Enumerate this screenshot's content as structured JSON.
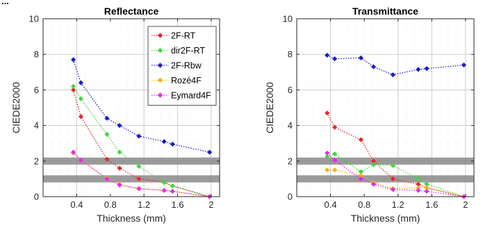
{
  "header_cut_text": "...",
  "chart_data": [
    {
      "type": "line",
      "title": "Reflectance",
      "xlabel": "Thickness (mm)",
      "ylabel": "CIEDE2000",
      "xlim": [
        0,
        2.1
      ],
      "ylim": [
        0,
        10
      ],
      "xticks": [
        "0.4",
        "0.8",
        "1.2",
        "1.6",
        "2"
      ],
      "yticks": [
        "0",
        "2",
        "4",
        "6",
        "8",
        "10"
      ],
      "grid": true,
      "legend_placement": "top-right",
      "threshold_bands": [
        [
          0.8,
          1.2
        ],
        [
          1.8,
          2.2
        ]
      ],
      "series": [
        {
          "name": "2F-RT",
          "color": "#e8262a",
          "x": [
            0.36,
            0.45,
            0.76,
            0.91,
            1.14,
            1.44,
            1.54,
            1.98
          ],
          "y": [
            6.0,
            4.5,
            2.1,
            1.6,
            1.0,
            0.8,
            0.6,
            0.0
          ]
        },
        {
          "name": "dir2F-RT",
          "color": "#3fd83f",
          "x": [
            0.36,
            0.45,
            0.76,
            0.91,
            1.14,
            1.44,
            1.54,
            1.98
          ],
          "y": [
            6.2,
            5.5,
            3.5,
            2.5,
            1.7,
            0.8,
            0.6,
            0.0
          ]
        },
        {
          "name": "2F-Rbw",
          "color": "#1a1ac8",
          "x": [
            0.36,
            0.45,
            0.76,
            0.91,
            1.14,
            1.44,
            1.54,
            1.98
          ],
          "y": [
            7.7,
            6.4,
            4.4,
            4.0,
            3.4,
            3.1,
            2.95,
            2.5
          ]
        },
        {
          "name": "Rozé4F",
          "color": "#f2b21b",
          "x": [
            0.36,
            0.45,
            0.76,
            0.91,
            1.14,
            1.44,
            1.54,
            1.98
          ],
          "y": [
            2.45,
            2.05,
            1.05,
            0.7,
            0.45,
            0.35,
            0.3,
            0.0
          ]
        },
        {
          "name": "Eymard4F",
          "color": "#e629e6",
          "x": [
            0.36,
            0.45,
            0.76,
            0.91,
            1.14,
            1.44,
            1.54,
            1.98
          ],
          "y": [
            2.5,
            2.05,
            1.0,
            0.65,
            0.45,
            0.35,
            0.3,
            0.0
          ]
        }
      ]
    },
    {
      "type": "line",
      "title": "Transmittance",
      "xlabel": "Thickness (mm)",
      "ylabel": "CIEDE2000",
      "xlim": [
        0,
        2.1
      ],
      "ylim": [
        0,
        10
      ],
      "xticks": [
        "0.4",
        "0.8",
        "1.2",
        "1.6",
        "2"
      ],
      "yticks": [
        "0",
        "2",
        "4",
        "6",
        "8",
        "10"
      ],
      "grid": true,
      "threshold_bands": [
        [
          0.8,
          1.2
        ],
        [
          1.8,
          2.2
        ]
      ],
      "series": [
        {
          "name": "2F-RT",
          "color": "#e8262a",
          "x": [
            0.36,
            0.45,
            0.76,
            0.91,
            1.14,
            1.44,
            1.54,
            1.98
          ],
          "y": [
            4.7,
            3.9,
            3.2,
            2.0,
            1.0,
            0.7,
            0.5,
            0.0
          ]
        },
        {
          "name": "dir2F-RT",
          "color": "#3fd83f",
          "x": [
            0.36,
            0.45,
            0.76,
            0.91,
            1.14,
            1.44,
            1.54,
            1.98
          ],
          "y": [
            2.25,
            2.4,
            1.4,
            1.8,
            1.75,
            1.0,
            0.7,
            0.0
          ]
        },
        {
          "name": "2F-Rbw",
          "color": "#1a1ac8",
          "x": [
            0.36,
            0.45,
            0.76,
            0.91,
            1.14,
            1.44,
            1.54,
            1.98
          ],
          "y": [
            7.95,
            7.75,
            7.8,
            7.3,
            6.85,
            7.15,
            7.2,
            7.4
          ]
        },
        {
          "name": "Rozé4F",
          "color": "#f2b21b",
          "x": [
            0.36,
            0.45,
            0.76,
            0.91,
            1.14,
            1.44,
            1.54,
            1.98
          ],
          "y": [
            1.5,
            1.5,
            1.2,
            0.8,
            0.45,
            0.5,
            0.5,
            0.0
          ]
        },
        {
          "name": "Eymard4F",
          "color": "#e629e6",
          "x": [
            0.36,
            0.45,
            0.76,
            0.91,
            1.14,
            1.44,
            1.54,
            1.98
          ],
          "y": [
            2.45,
            2.05,
            1.0,
            0.7,
            0.4,
            0.35,
            0.3,
            0.0
          ]
        }
      ]
    }
  ]
}
